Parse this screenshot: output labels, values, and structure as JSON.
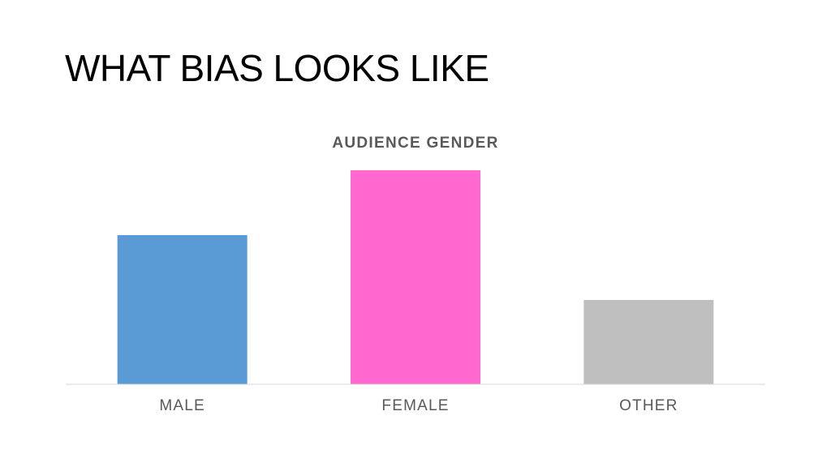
{
  "slide": {
    "title": "WHAT BIAS LOOKS LIKE"
  },
  "colors": {
    "male": "#5b9bd5",
    "female": "#ff69cf",
    "other": "#bfbfbf",
    "chart_title": "#595959",
    "tick_label": "#595959",
    "baseline": "#d9d9d9"
  },
  "chart_data": {
    "type": "bar",
    "title": "AUDIENCE GENDER",
    "xlabel": "",
    "ylabel": "",
    "categories": [
      "MALE",
      "FEMALE",
      "OTHER"
    ],
    "values": [
      46,
      66,
      26
    ],
    "bar_colors": [
      "#5b9bd5",
      "#ff69cf",
      "#bfbfbf"
    ],
    "ylim": [
      0,
      80
    ],
    "grid": false,
    "legend": "none"
  }
}
